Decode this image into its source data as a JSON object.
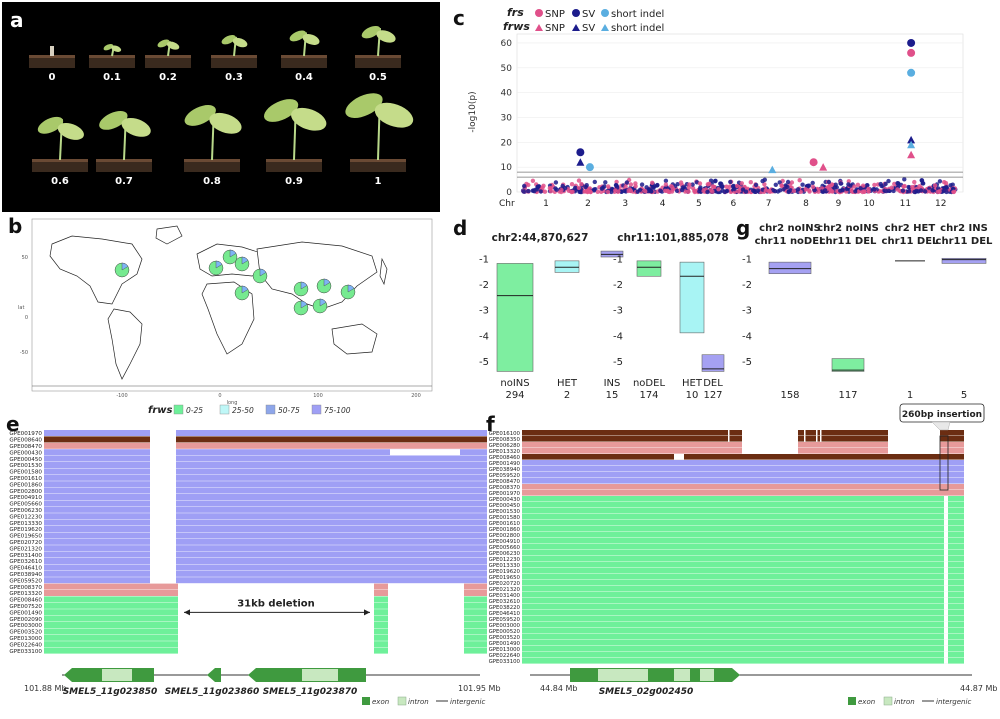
{
  "panel_a": {
    "label": "a",
    "pots": [
      "0",
      "0.1",
      "0.2",
      "0.3",
      "0.4",
      "0.5",
      "0.6",
      "0.7",
      "0.8",
      "0.9",
      "1"
    ]
  },
  "panel_b": {
    "label": "b",
    "y_label": "lat",
    "x_label": "long",
    "x_ticks": [
      "-100",
      "0",
      "100",
      "200"
    ],
    "y_ticks": [
      "50",
      "0",
      "-50"
    ]
  },
  "panel_c": {
    "label": "c",
    "legend_frs": "frs",
    "legend_frws": "frws",
    "legend_snp": "SNP",
    "legend_sv": "SV",
    "legend_indel": "short indel",
    "y_axis": "-log10(p)",
    "chr_label": "Chr",
    "colors": {
      "pink": "#e0508a",
      "navy": "#1c1c8c",
      "light": "#5aaee0"
    },
    "chart_data": {
      "type": "scatter",
      "title": "",
      "xlabel": "Chr",
      "ylabel": "-log10(p)",
      "x_categories": [
        "1",
        "2",
        "3",
        "4",
        "5",
        "6",
        "7",
        "8",
        "9",
        "10",
        "11",
        "12"
      ],
      "ylim": [
        0,
        62
      ],
      "y_ticks": [
        "0",
        "10",
        "20",
        "30",
        "40",
        "50",
        "60"
      ],
      "thresholds": [
        8,
        6
      ],
      "highlights": [
        {
          "chr": "2",
          "pos": 0.3,
          "value": 16,
          "series": "frs SV"
        },
        {
          "chr": "2",
          "pos": 0.3,
          "value": 12,
          "series": "frws SV"
        },
        {
          "chr": "2",
          "pos": 0.55,
          "value": 10,
          "series": "frs short indel"
        },
        {
          "chr": "7",
          "pos": 0.6,
          "value": 9,
          "series": "frws short indel"
        },
        {
          "chr": "8",
          "pos": 0.7,
          "value": 12,
          "series": "frs SNP"
        },
        {
          "chr": "8",
          "pos": 0.95,
          "value": 10,
          "series": "frws SNP"
        },
        {
          "chr": "11",
          "pos": 0.65,
          "value": 60,
          "series": "frs SV"
        },
        {
          "chr": "11",
          "pos": 0.65,
          "value": 56,
          "series": "frs SNP"
        },
        {
          "chr": "11",
          "pos": 0.65,
          "value": 48,
          "series": "frs short indel"
        },
        {
          "chr": "11",
          "pos": 0.65,
          "value": 21,
          "series": "frws SV"
        },
        {
          "chr": "11",
          "pos": 0.65,
          "value": 19,
          "series": "frws short indel"
        },
        {
          "chr": "11",
          "pos": 0.65,
          "value": 15,
          "series": "frws SNP"
        }
      ]
    }
  },
  "panel_d": {
    "label": "d",
    "chart_data": [
      {
        "type": "box",
        "title": "chr2:44,870,627",
        "ylim": [
          -5.5,
          -0.6
        ],
        "y_ticks": [
          "-1",
          "-2",
          "-3",
          "-4",
          "-5"
        ],
        "groups": [
          {
            "name": "noINS",
            "n": "294",
            "q1": -5.4,
            "median": -2.45,
            "q3": -1.2,
            "color": "#7eeea0"
          },
          {
            "name": "HET",
            "n": "2",
            "q1": -1.55,
            "median": -1.35,
            "q3": -1.1,
            "color": "#a8f4f4"
          },
          {
            "name": "INS",
            "n": "15",
            "q1": -0.95,
            "median": -0.85,
            "q3": -0.72,
            "color": "#a5a1f2"
          }
        ]
      },
      {
        "type": "box",
        "title": "chr11:101,885,078",
        "ylim": [
          -5.5,
          -0.6
        ],
        "y_ticks": [
          "-1",
          "-2",
          "-3",
          "-4",
          "-5"
        ],
        "groups": [
          {
            "name": "noDEL",
            "n": "174",
            "q1": -1.7,
            "median": -1.35,
            "q3": -1.1,
            "color": "#7eeea0"
          },
          {
            "name": "HET",
            "n": "10",
            "q1": -3.9,
            "median": -1.7,
            "q3": -1.15,
            "color": "#a8f4f4"
          },
          {
            "name": "DEL",
            "n": "127",
            "q1": -5.4,
            "median": -5.3,
            "q3": -4.75,
            "color": "#a5a1f2"
          }
        ]
      }
    ]
  },
  "panel_g": {
    "label": "g",
    "chart_data": {
      "type": "box",
      "ylim": [
        -5.5,
        -0.6
      ],
      "y_ticks": [
        "-1",
        "-2",
        "-3",
        "-4",
        "-5"
      ],
      "groups": [
        {
          "name1": "chr2 noINS",
          "name2": "chr11 noDEL",
          "n": "158",
          "q1": -1.6,
          "median": -1.4,
          "q3": -1.15,
          "color": "#a5a1f2"
        },
        {
          "name1": "chr2 noINS",
          "name2": "chr11 DEL",
          "n": "117",
          "q1": -5.4,
          "median": -5.35,
          "q3": -4.9,
          "color": "#7eeea0"
        },
        {
          "name1": "chr2 HET",
          "name2": "chr11 DEL",
          "n": "1",
          "q1": -1.1,
          "median": -1.1,
          "q3": -1.1,
          "color": "#333333"
        },
        {
          "name1": "chr2 INS",
          "name2": "chr11 DEL",
          "n": "5",
          "q1": -1.2,
          "median": -1.05,
          "q3": -1.0,
          "color": "#a5a1f2"
        }
      ]
    }
  },
  "panel_e": {
    "label": "e",
    "frws_title": "frws",
    "frws_ranges": [
      "0-25",
      "25-50",
      "50-75",
      "75-100"
    ],
    "frws_colors": [
      "#6ef09a",
      "#bff7f7",
      "#8ea6ea",
      "#9f9ff5"
    ],
    "rows": [
      "GPE001970",
      "GPE008640",
      "GPE008470",
      "GPE000430",
      "GPE000450",
      "GPE001530",
      "GPE001580",
      "GPE001610",
      "GPE001860",
      "GPE002800",
      "GPE004910",
      "GPE005660",
      "GPE006230",
      "GPE012230",
      "GPE013330",
      "GPE019620",
      "GPE019650",
      "GPE020720",
      "GPE021320",
      "GPE031400",
      "GPE032610",
      "GPE046410",
      "GPE038940",
      "GPE059520",
      "GPE008370",
      "GPE013320",
      "GPE008460",
      "GPE007520",
      "GPE001490",
      "GPE002090",
      "GPE003000",
      "GPE003520",
      "GPE013000",
      "GPE022640",
      "GPE033100"
    ],
    "deletion_label": "31kb deletion",
    "genes": [
      "SMEL5_11g023850",
      "SMEL5_11g023860",
      "SMEL5_11g023870"
    ],
    "start": "101.88 Mb",
    "end": "101.95 Mb",
    "legend_exon": "exon",
    "legend_intron": "intron",
    "legend_intergenic": "intergenic"
  },
  "panel_f": {
    "label": "f",
    "insertion_label": "260bp insertion",
    "rows": [
      "GPE016100",
      "GPE008350",
      "GPE006280",
      "GPE013320",
      "GPE008460",
      "GPE001490",
      "GPE038940",
      "GPE059520",
      "GPE008470",
      "GPE008370",
      "GPE001970",
      "GPE000430",
      "GPE000450",
      "GPE001530",
      "GPE001580",
      "GPE001610",
      "GPE001860",
      "GPE002800",
      "GPE004910",
      "GPE005660",
      "GPE006230",
      "GPE012230",
      "GPE013330",
      "GPE019620",
      "GPE019650",
      "GPE020720",
      "GPE021320",
      "GPE031400",
      "GPE032610",
      "GPE038220",
      "GPE046410",
      "GPE059520",
      "GPE003000",
      "GPE000520",
      "GPE003520",
      "GPE001490",
      "GPE013000",
      "GPE022640",
      "GPE033100"
    ],
    "gene": "SMEL5_02g002450",
    "start": "44.84 Mb",
    "end": "44.87 Mb",
    "legend_exon": "exon",
    "legend_intron": "intron",
    "legend_intergenic": "intergenic"
  }
}
